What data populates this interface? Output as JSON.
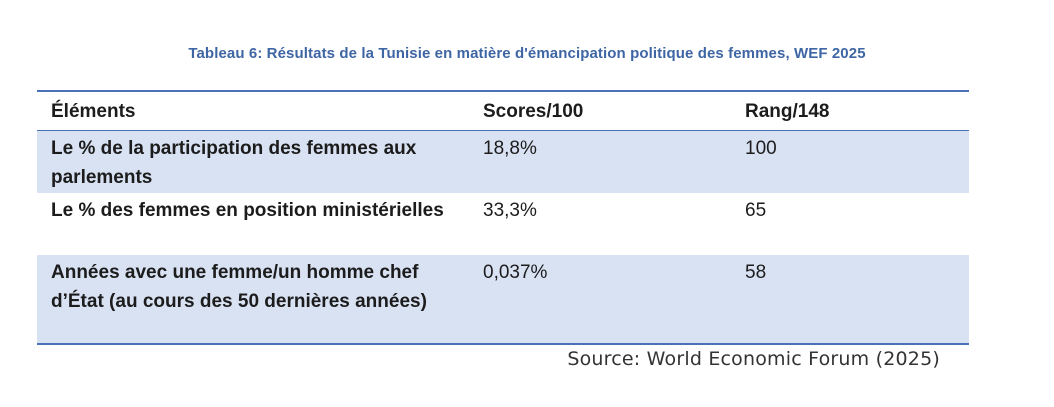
{
  "caption": "Tableau 6: Résultats de la Tunisie en matière d'émancipation politique des femmes, WEF 2025",
  "table": {
    "headers": [
      "Éléments",
      "Scores/100",
      "Rang/148"
    ],
    "rows": [
      [
        "Le % de la participation des femmes aux parlements",
        "18,8%",
        "100"
      ],
      [
        "Le % des femmes en position ministérielles",
        "33,3%",
        "65"
      ],
      [
        "Années avec une femme/un homme chef d’État (au cours des 50 dernières années)",
        "0,037%",
        "58"
      ]
    ]
  },
  "source": "Source: World Economic Forum (2025)",
  "colors": {
    "caption": "#3E65A4",
    "border": "#4A72B8",
    "shade": "#D9E2F3"
  }
}
